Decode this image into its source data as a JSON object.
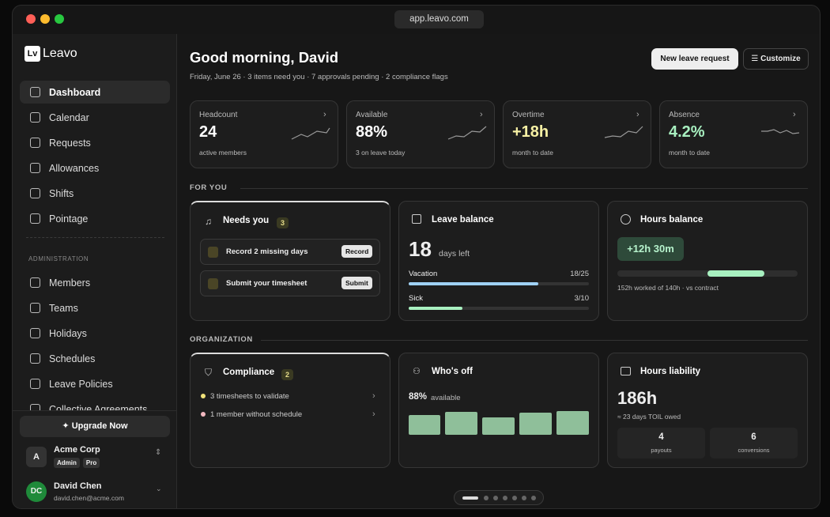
{
  "browser": {
    "url": "app.leavo.com"
  },
  "sidebar": {
    "logo": "Lv",
    "brand": "Leavo",
    "nav": [
      "Dashboard",
      "Calendar",
      "Requests",
      "Allowances",
      "Shifts",
      "Pointage"
    ],
    "admin_heading": "ADMINISTRATION",
    "admin_nav": [
      "Members",
      "Teams",
      "Holidays",
      "Schedules",
      "Leave Policies",
      "Collective Agreements"
    ],
    "upgrade": "Upgrade Now",
    "org": {
      "initial": "A",
      "name": "Acme Corp",
      "badges": [
        "Admin",
        "Pro"
      ]
    },
    "user": {
      "initials": "DC",
      "name": "David Chen",
      "email": "david.chen@acme.com"
    }
  },
  "header": {
    "greeting": "Good morning, David",
    "subtitle": "Friday, June 26 · 3 items need you · 7 approvals pending · 2 compliance flags",
    "buttons": [
      "New leave request",
      "Customize"
    ]
  },
  "stats": [
    {
      "label": "Headcount",
      "value": "24",
      "caption": "active members"
    },
    {
      "label": "Available",
      "value": "88%",
      "caption": "3 on leave today"
    },
    {
      "label": "Overtime",
      "value": "+18h",
      "caption": "month to date"
    },
    {
      "label": "Absence",
      "value": "4.2%",
      "caption": "month to date"
    }
  ],
  "for_you": {
    "heading": "FOR YOU",
    "needs_you": {
      "title": "Needs you",
      "count": "3",
      "items": [
        {
          "text": "Record 2 missing days",
          "action": "Record"
        },
        {
          "text": "Submit your timesheet",
          "action": "Submit"
        }
      ]
    },
    "leave_balance": {
      "title": "Leave balance",
      "days": "18",
      "unit": "days left",
      "rows": [
        {
          "label": "Vacation",
          "value": "18/25"
        },
        {
          "label": "Sick",
          "value": "3/10"
        }
      ]
    },
    "hours_balance": {
      "title": "Hours balance",
      "value": "+12h 30m",
      "caption": "152h worked of 140h · vs contract"
    }
  },
  "organization": {
    "heading": "ORGANIZATION",
    "compliance": {
      "title": "Compliance",
      "count": "2",
      "items": [
        "3 timesheets to validate",
        "1 member without schedule"
      ]
    },
    "whos_off": {
      "title": "Who's off",
      "value": "88%",
      "caption": "available"
    },
    "hours_liability": {
      "title": "Hours liability",
      "value": "186h",
      "caption": "≈ 23 days TOIL owed",
      "stats": [
        {
          "value": "4",
          "label": "payouts"
        },
        {
          "value": "6",
          "label": "conversions"
        }
      ]
    }
  }
}
